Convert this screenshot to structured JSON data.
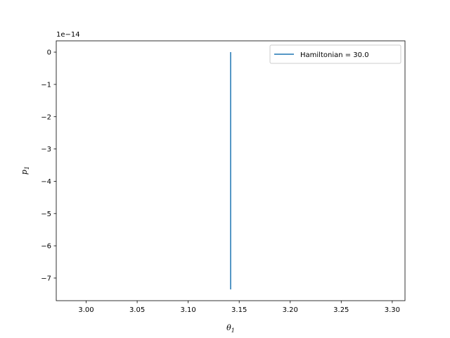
{
  "chart_data": {
    "type": "line",
    "xlabel_symbol": "θ",
    "xlabel_subscript": "1",
    "ylabel_symbol": "p",
    "ylabel_subscript": "1",
    "y_offset_text": "1e−14",
    "xlim": [
      2.9707,
      3.3125
    ],
    "ylim": [
      -7.7,
      0.35
    ],
    "xticks": [
      3.0,
      3.05,
      3.1,
      3.15,
      3.2,
      3.25,
      3.3
    ],
    "xtick_labels": [
      "3.00",
      "3.05",
      "3.10",
      "3.15",
      "3.20",
      "3.25",
      "3.30"
    ],
    "yticks": [
      0,
      -1,
      -2,
      -3,
      -4,
      -5,
      -6,
      -7
    ],
    "ytick_labels": [
      "0",
      "−1",
      "−2",
      "−3",
      "−4",
      "−5",
      "−6",
      "−7"
    ],
    "grid": false,
    "legend_position": "top-right",
    "series": [
      {
        "name": "Hamiltonian = 30.0",
        "color": "#1f77b4",
        "x": [
          3.1416,
          3.1416
        ],
        "y": [
          0,
          -7.35
        ]
      }
    ]
  }
}
